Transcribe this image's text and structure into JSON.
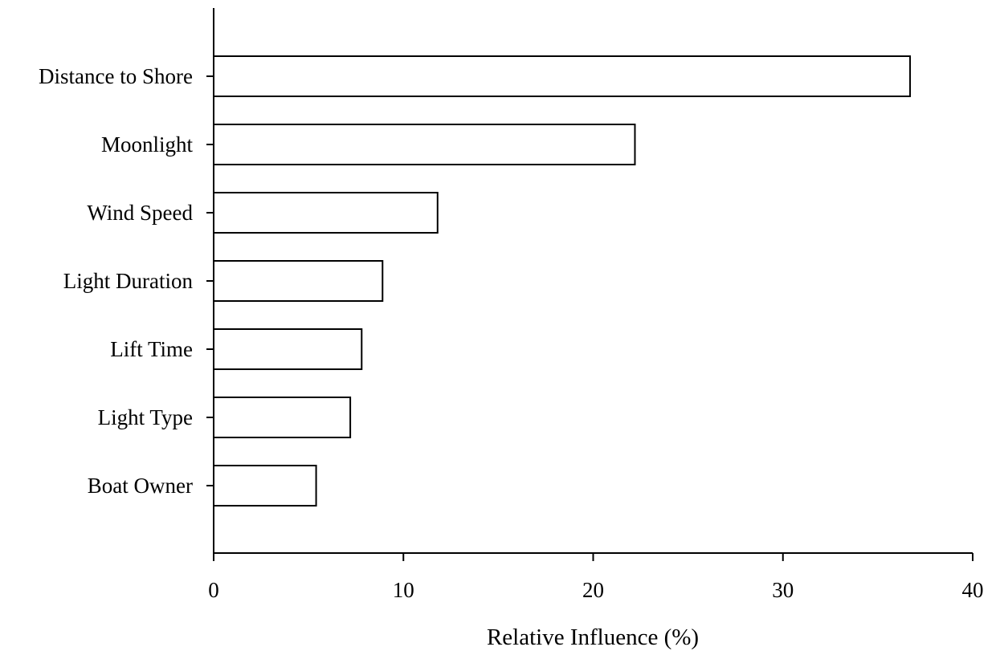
{
  "chart_data": {
    "type": "bar",
    "orientation": "horizontal",
    "categories": [
      "Distance to Shore",
      "Moonlight",
      "Wind Speed",
      "Light Duration",
      "Lift Time",
      "Light Type",
      "Boat Owner"
    ],
    "values": [
      36.7,
      22.2,
      11.8,
      8.9,
      7.8,
      7.2,
      5.4
    ],
    "xlabel": "Relative Influence (%)",
    "ylabel": "",
    "xlim": [
      0,
      40
    ],
    "xticks": [
      "0",
      "10",
      "20",
      "30",
      "40"
    ],
    "grid": false,
    "bar_fill": "#ffffff",
    "bar_stroke": "#000000"
  }
}
